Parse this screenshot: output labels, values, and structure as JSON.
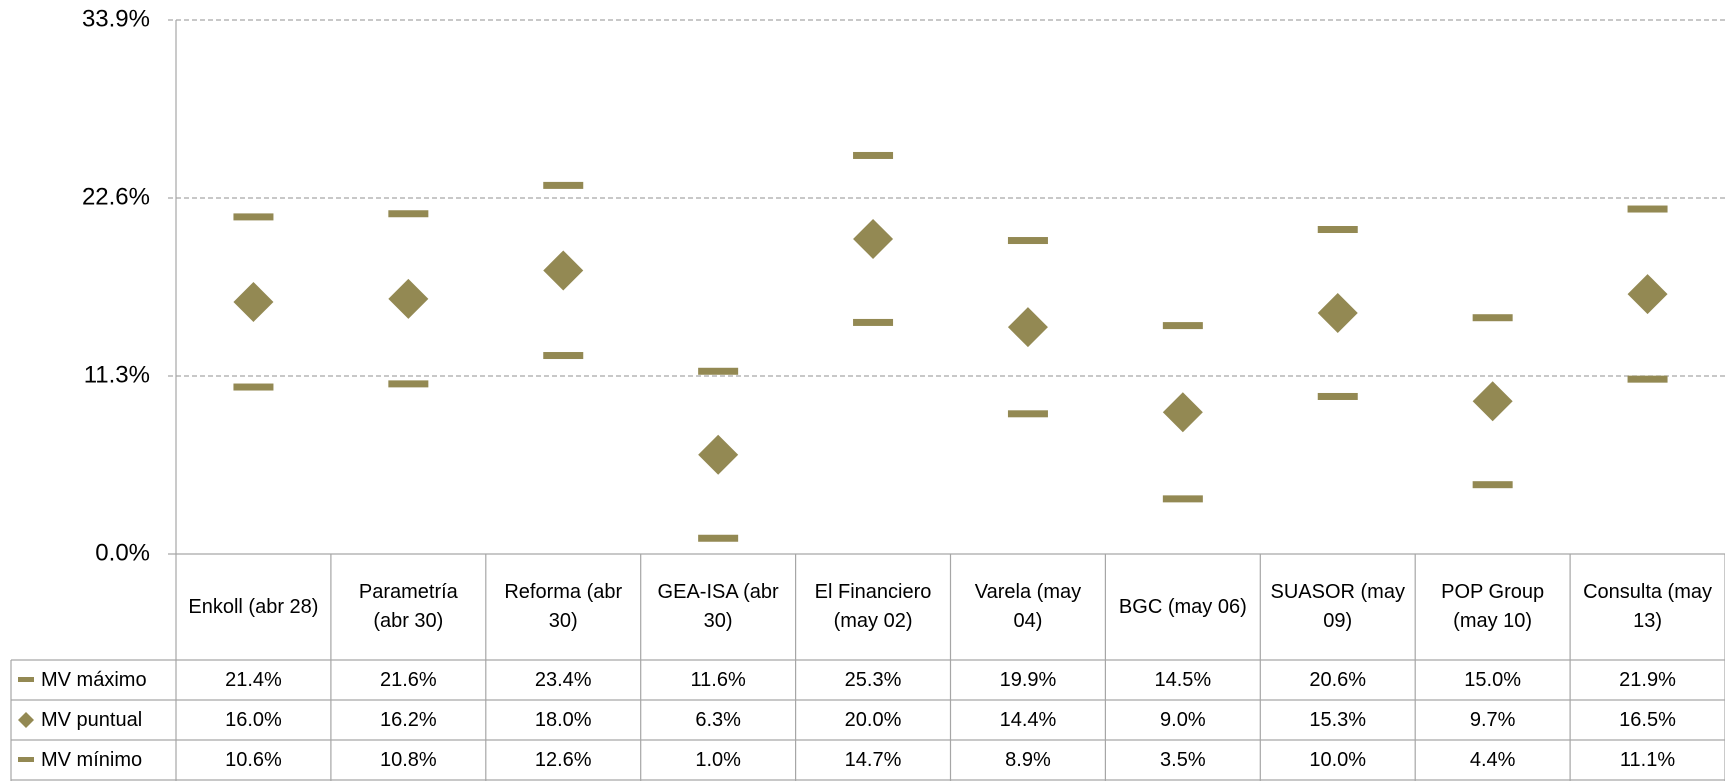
{
  "chart_data": {
    "type": "marker",
    "categories": [
      "Enkoll (abr 28)",
      "Parametría (abr 30)",
      "Reforma (abr 30)",
      "GEA-ISA (abr 30)",
      "El Financiero (may 02)",
      "Varela (may 04)",
      "BGC (may 06)",
      "SUASOR (may 09)",
      "POP Group (may 10)",
      "Consulta (may 13)"
    ],
    "series": [
      {
        "name": "MV máximo",
        "color": "#938953",
        "marker": "dash",
        "values": [
          21.4,
          21.6,
          23.4,
          11.6,
          25.3,
          19.9,
          14.5,
          20.6,
          15.0,
          21.9
        ],
        "value_labels": [
          "21.4%",
          "21.6%",
          "23.4%",
          "11.6%",
          "25.3%",
          "19.9%",
          "14.5%",
          "20.6%",
          "15.0%",
          "21.9%"
        ]
      },
      {
        "name": "MV puntual",
        "color": "#938953",
        "marker": "diamond",
        "values": [
          16.0,
          16.2,
          18.0,
          6.3,
          20.0,
          14.4,
          9.0,
          15.3,
          9.7,
          16.5
        ],
        "value_labels": [
          "16.0%",
          "16.2%",
          "18.0%",
          "6.3%",
          "20.0%",
          "14.4%",
          "9.0%",
          "15.3%",
          "9.7%",
          "16.5%"
        ]
      },
      {
        "name": "MV mínimo",
        "color": "#938953",
        "marker": "dash",
        "values": [
          10.6,
          10.8,
          12.6,
          1.0,
          14.7,
          8.9,
          3.5,
          10.0,
          4.4,
          11.1
        ],
        "value_labels": [
          "10.6%",
          "10.8%",
          "12.6%",
          "1.0%",
          "14.7%",
          "8.9%",
          "3.5%",
          "10.0%",
          "4.4%",
          "11.1%"
        ]
      }
    ],
    "ylim": [
      0,
      33.9
    ],
    "yticks": [
      {
        "value": 0,
        "label": "0.0%"
      },
      {
        "value": 11.3,
        "label": "11.3%"
      },
      {
        "value": 22.6,
        "label": "22.6%"
      },
      {
        "value": 33.9,
        "label": "33.9%"
      }
    ],
    "grid": true
  }
}
